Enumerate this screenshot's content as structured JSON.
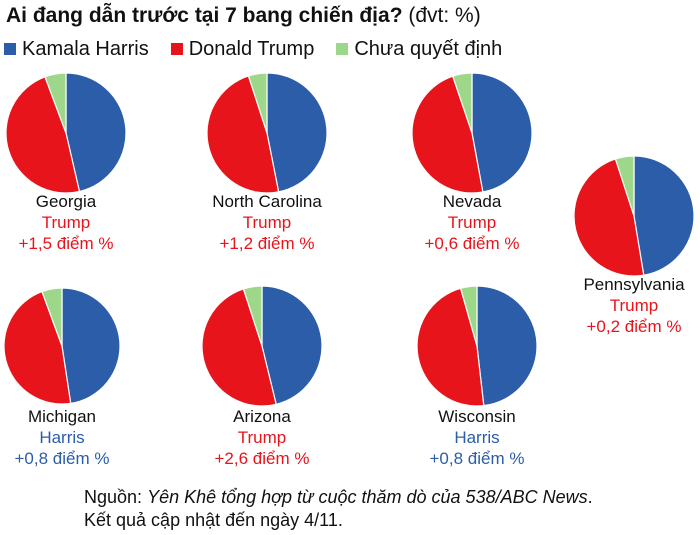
{
  "title_bold": "Ai đang dẫn trước tại 7 bang chiến địa?",
  "title_unit": "(đvt: %)",
  "colors": {
    "harris": "#2C5DA8",
    "trump": "#E8141B",
    "undecided": "#9DD88A",
    "harris_text": "#2C5DA8",
    "trump_text": "#E8141B"
  },
  "legend": [
    {
      "label": "Kamala Harris",
      "key": "harris"
    },
    {
      "label": "Donald Trump",
      "key": "trump"
    },
    {
      "label": "Chưa quyết định",
      "key": "undecided"
    }
  ],
  "chart_data": {
    "type": "pie",
    "series_names": [
      "Kamala Harris",
      "Donald Trump",
      "Chưa quyết định"
    ],
    "states": [
      {
        "state": "Georgia",
        "harris": 46.4,
        "trump": 47.9,
        "undecided": 5.7,
        "leader": "Trump",
        "margin": "+1,5 điểm %"
      },
      {
        "state": "North Carolina",
        "harris": 46.9,
        "trump": 48.1,
        "undecided": 5.0,
        "leader": "Trump",
        "margin": "+1,2 điểm %"
      },
      {
        "state": "Nevada",
        "harris": 47.1,
        "trump": 47.7,
        "undecided": 5.2,
        "leader": "Trump",
        "margin": "+0,6 điểm %"
      },
      {
        "state": "Pennsylvania",
        "harris": 47.4,
        "trump": 47.6,
        "undecided": 5.0,
        "leader": "Trump",
        "margin": "+0,2 điểm %"
      },
      {
        "state": "Michigan",
        "harris": 47.6,
        "trump": 46.8,
        "undecided": 5.6,
        "leader": "Harris",
        "margin": "+0,8 điểm %"
      },
      {
        "state": "Arizona",
        "harris": 46.2,
        "trump": 48.8,
        "undecided": 5.0,
        "leader": "Trump",
        "margin": "+2,6 điểm %"
      },
      {
        "state": "Wisconsin",
        "harris": 48.2,
        "trump": 47.4,
        "undecided": 4.4,
        "leader": "Harris",
        "margin": "+0,8 điểm %"
      }
    ]
  },
  "source_label": "Nguồn:",
  "source_text": "Yên Khê tổng hợp từ cuộc thăm dò của 538/ABC News",
  "source_end": ".",
  "update_note": "Kết quả cập nhật đến ngày 4/11."
}
